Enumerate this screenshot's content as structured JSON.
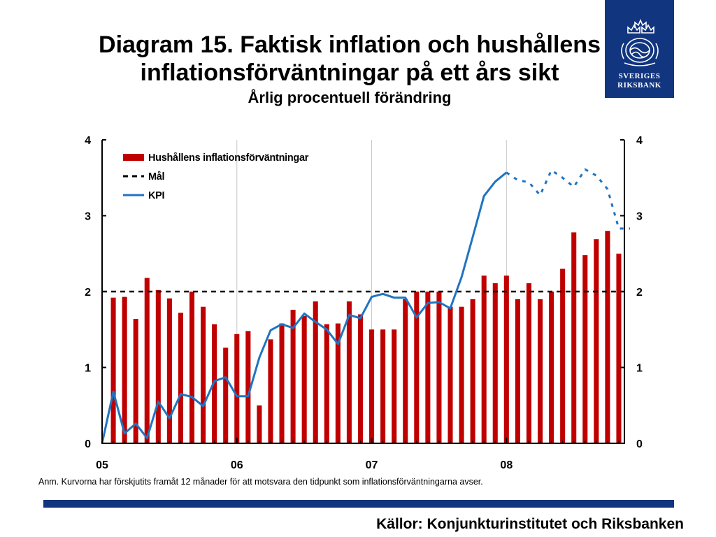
{
  "slide": {
    "title_line1": "Diagram 15. Faktisk inflation och hushållens",
    "title_line2": "inflationsförväntningar på ett års sikt",
    "subtitle": "Årlig procentuell förändring",
    "note": "Anm. Kurvorna har förskjutits framåt 12 månader för att motsvara den tidpunkt som inflationsförväntningarna avser.",
    "sources": "Källor: Konjunkturinstitutet och Riksbanken"
  },
  "logo": {
    "line1": "SVERIGES",
    "line2": "RIKSBANK",
    "icon": "crown-emblem-icon"
  },
  "colors": {
    "bars": "#c00000",
    "kpi": "#1f74c1",
    "target": "#000000",
    "brand": "#12357f"
  },
  "chart_data": {
    "type": "bar",
    "ylim": [
      0,
      4
    ],
    "yticks": [
      0,
      1,
      2,
      3,
      4
    ],
    "xticks": [
      {
        "label": "05",
        "month": 0
      },
      {
        "label": "06",
        "month": 12
      },
      {
        "label": "07",
        "month": 24
      },
      {
        "label": "08",
        "month": 36
      }
    ],
    "x_range_months": [
      0,
      46.5
    ],
    "grid": "vertical lines at year ticks",
    "legend": {
      "position": "top-left",
      "entries": [
        {
          "label": "Hushållens inflationsförväntningar",
          "kind": "bar"
        },
        {
          "label": "Mål",
          "kind": "dashed-line"
        },
        {
          "label": "KPI",
          "kind": "line"
        }
      ]
    },
    "series": [
      {
        "name": "Hushållens inflationsförväntningar",
        "kind": "bar",
        "x": [
          1,
          2,
          3,
          4,
          5,
          6,
          7,
          8,
          9,
          10,
          11,
          12,
          13,
          14,
          15,
          16,
          17,
          18,
          19,
          20,
          21,
          22,
          23,
          24,
          25,
          26,
          27,
          28,
          29,
          30,
          31,
          32,
          33,
          34,
          35,
          36,
          37,
          38,
          39,
          40,
          41,
          42,
          43,
          44,
          45,
          46
        ],
        "values": [
          1.92,
          1.93,
          1.64,
          2.18,
          2.02,
          1.91,
          1.72,
          2.0,
          1.8,
          1.57,
          1.26,
          1.44,
          1.48,
          0.5,
          1.37,
          1.58,
          1.76,
          1.68,
          1.87,
          1.57,
          1.58,
          1.87,
          1.7,
          1.5,
          1.5,
          1.5,
          1.9,
          2.0,
          2.0,
          2.0,
          1.8,
          1.8,
          1.9,
          2.21,
          2.11,
          2.21,
          1.9,
          2.11,
          1.9,
          2.0,
          2.3,
          2.78,
          2.48,
          2.69,
          2.8,
          2.5
        ]
      },
      {
        "name": "Mål",
        "kind": "dashed-line",
        "value": 2
      },
      {
        "name": "KPI",
        "kind": "line",
        "x": [
          0,
          1,
          2,
          3,
          4,
          5,
          6,
          7,
          8,
          9,
          10,
          11,
          12,
          13,
          14,
          15,
          16,
          17,
          18,
          19,
          20,
          21,
          22,
          23,
          24,
          25,
          26,
          27,
          28,
          29,
          30,
          31,
          32,
          33,
          34,
          35,
          36
        ],
        "values": [
          0.0,
          0.68,
          0.13,
          0.26,
          0.07,
          0.55,
          0.33,
          0.65,
          0.61,
          0.49,
          0.82,
          0.87,
          0.62,
          0.62,
          1.13,
          1.49,
          1.57,
          1.52,
          1.71,
          1.6,
          1.5,
          1.31,
          1.69,
          1.65,
          1.93,
          1.97,
          1.92,
          1.92,
          1.66,
          1.85,
          1.86,
          1.78,
          2.19,
          2.72,
          3.26,
          3.45,
          3.57
        ]
      },
      {
        "name": "KPI (prognos)",
        "kind": "dotted-line",
        "x": [
          36,
          37,
          38,
          39,
          40,
          41,
          42,
          43,
          44,
          45,
          46,
          47
        ],
        "values": [
          3.57,
          3.47,
          3.44,
          3.27,
          3.6,
          3.5,
          3.38,
          3.61,
          3.53,
          3.35,
          2.83,
          2.83
        ]
      }
    ]
  }
}
